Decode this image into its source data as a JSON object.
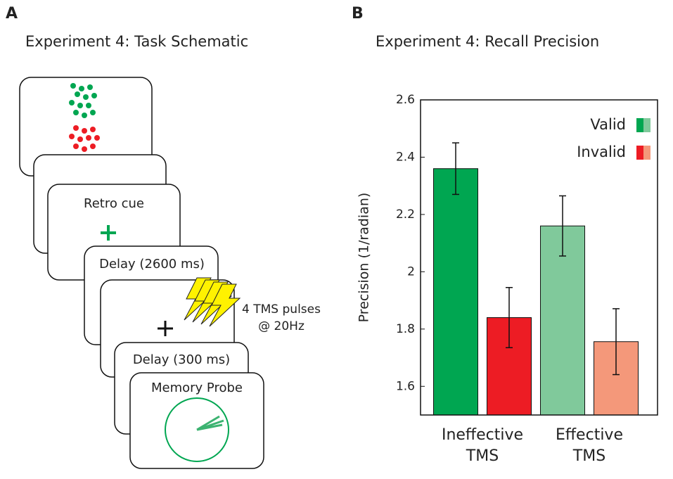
{
  "panel_a": {
    "letter": "A",
    "title": "Experiment 4: Task Schematic",
    "cards": [
      "Retro cue",
      "Delay (2600 ms)",
      "Delay (300 ms)",
      "Memory Probe"
    ],
    "tms_label": [
      "4 TMS pulses",
      "@ 20Hz"
    ]
  },
  "panel_b_letter": "B",
  "chart_data": {
    "type": "bar",
    "title": "Experiment 4: Recall Precision",
    "ylabel": "Precision (1/radian)",
    "categories": [
      "Ineffective TMS",
      "Effective TMS"
    ],
    "series": [
      {
        "name": "Valid",
        "colors": [
          "#00a651",
          "#80c99b"
        ],
        "values": [
          2.36,
          2.16
        ],
        "errors": [
          0.09,
          0.105
        ]
      },
      {
        "name": "Invalid",
        "colors": [
          "#ed1c24",
          "#f4987a"
        ],
        "values": [
          1.84,
          1.756
        ],
        "errors": [
          0.105,
          0.115
        ]
      }
    ],
    "ylim": [
      1.5,
      2.6
    ],
    "yticks": [
      1.6,
      1.8,
      2,
      2.2,
      2.4,
      2.6
    ],
    "legend": "upper right"
  }
}
